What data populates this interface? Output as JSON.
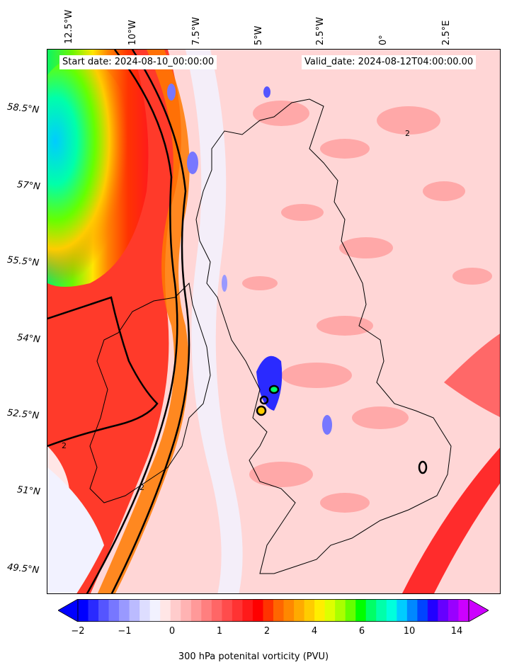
{
  "map": {
    "start_date": "Start date: 2024-08-10_00:00:00",
    "valid_date": "Valid_date: 2024-08-12T04:00:00.00",
    "lon_labels": [
      "12.5°W",
      "10°W",
      "7.5°W",
      "5°W",
      "2.5°W",
      "0°",
      "2.5°E"
    ],
    "lat_labels": [
      "58.5°N",
      "57°N",
      "55.5°N",
      "54°N",
      "52.5°N",
      "51°N",
      "49.5°N"
    ],
    "contour_label": "2"
  },
  "colorbar": {
    "title": "300 hPa potenital vorticity (PVU)",
    "ticks": [
      "−2",
      "−1",
      "0",
      "1",
      "2",
      "4",
      "6",
      "10",
      "14"
    ],
    "colors": [
      "#0000ff",
      "#2a2aff",
      "#5555ff",
      "#7777ff",
      "#9999ff",
      "#bbbbff",
      "#ddddff",
      "#f2f2ff",
      "#ffe6e6",
      "#ffcccc",
      "#ffb3b3",
      "#ff9999",
      "#ff7f7f",
      "#ff6666",
      "#ff4c4c",
      "#ff3333",
      "#ff1a1a",
      "#ff0000",
      "#ff3300",
      "#ff6600",
      "#ff8800",
      "#ffaa00",
      "#ffcc00",
      "#ffee00",
      "#ddff00",
      "#aaff00",
      "#66ff00",
      "#00ff00",
      "#00ff66",
      "#00ffaa",
      "#00ffdd",
      "#00ccff",
      "#0088ff",
      "#0044ff",
      "#2200ff",
      "#6600ff",
      "#9900ff",
      "#cc00ff"
    ]
  }
}
